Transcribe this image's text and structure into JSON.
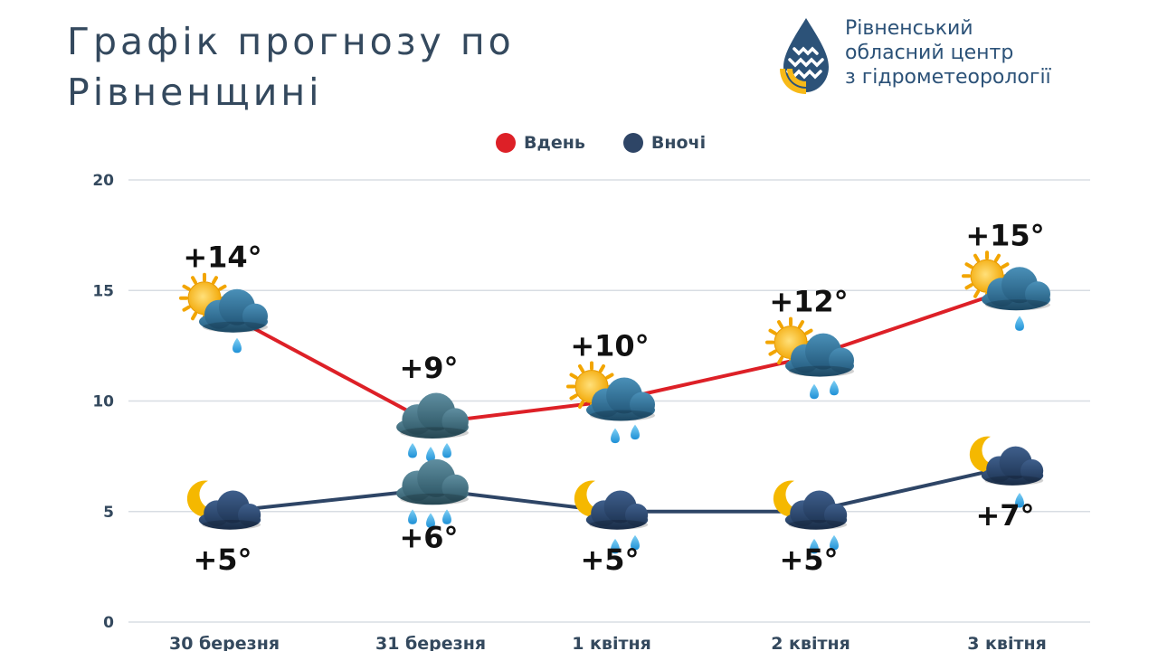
{
  "title": "Графік прогнозу по Рівненщині",
  "organization": {
    "lines": [
      "Рівненський",
      "обласний центр",
      "з гідрометеорології"
    ]
  },
  "colors": {
    "day": "#dd2027",
    "night": "#2e4566",
    "grid": "#d8dde3",
    "text": "#34495e"
  },
  "chart_data": {
    "type": "line",
    "categories": [
      "30 березня",
      "31 березня",
      "1 квітня",
      "2 квітня",
      "3 квітня"
    ],
    "ylim": [
      0,
      20
    ],
    "yticks": [
      "0",
      "5",
      "10",
      "15",
      "20"
    ],
    "legend_position": "top-center",
    "grid": true,
    "series": [
      {
        "name": "Вдень",
        "values": [
          14,
          9,
          10,
          12,
          15
        ],
        "labels": [
          "+14°",
          "+9°",
          "+10°",
          "+12°",
          "+15°"
        ],
        "icons": [
          "sun-cloud-light-rain-icon",
          "cloud-rain-icon",
          "sun-cloud-rain-icon",
          "sun-cloud-rain-icon",
          "sun-cloud-light-rain-icon"
        ]
      },
      {
        "name": "Вночі",
        "values": [
          5,
          6,
          5,
          5,
          7
        ],
        "labels": [
          "+5°",
          "+6°",
          "+5°",
          "+5°",
          "+7°"
        ],
        "icons": [
          "moon-cloud-icon",
          "cloud-rain-icon",
          "moon-cloud-rain-icon",
          "moon-cloud-rain-icon",
          "moon-cloud-light-rain-icon"
        ]
      }
    ]
  }
}
